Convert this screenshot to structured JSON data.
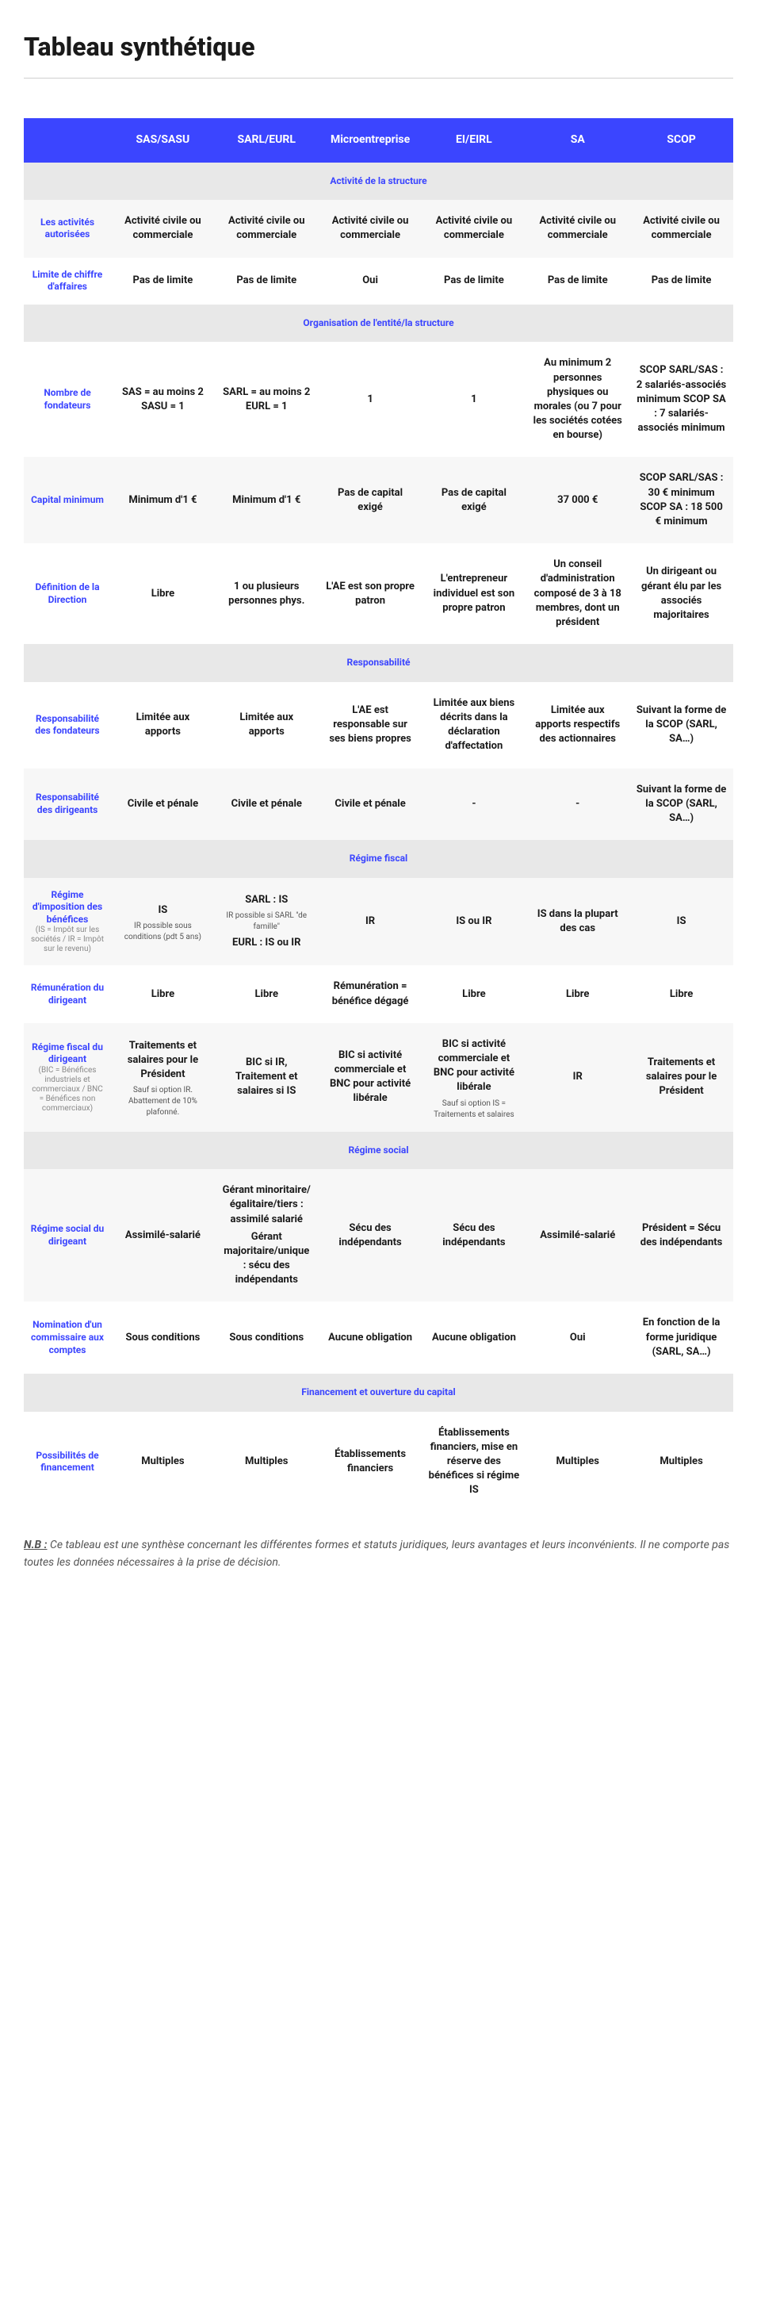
{
  "page": {
    "title": "Tableau synthétique",
    "footnote_label": "N.B :",
    "footnote_text": "Ce tableau est une synthèse concernant les différentes formes et statuts juridiques, leurs avantages et leurs inconvénients. Il ne comporte pas toutes les données nécessaires à la prise de décision."
  },
  "colors": {
    "header_bg": "#3b45ff",
    "header_text": "#ffffff",
    "section_bg": "#e8e8e8",
    "label_color": "#3b45ff",
    "divider": "#d0d0d0"
  },
  "columns": [
    "",
    "SAS/SASU",
    "SARL/EURL",
    "Microentreprise",
    "EI/EIRL",
    "SA",
    "SCOP"
  ],
  "sections": [
    {
      "title": "Activité de la structure",
      "rows": [
        {
          "label": "Les activités autorisées",
          "cells": [
            {
              "main": "Activité civile ou commerciale"
            },
            {
              "main": "Activité civile ou commerciale"
            },
            {
              "main": "Activité civile ou commerciale"
            },
            {
              "main": "Activité civile ou commerciale"
            },
            {
              "main": "Activité civile ou commerciale"
            },
            {
              "main": "Activité civile ou commerciale"
            }
          ]
        },
        {
          "label": "Limite de chiffre d'affaires",
          "cells": [
            {
              "main": "Pas de limite"
            },
            {
              "main": "Pas de limite"
            },
            {
              "main": "Oui"
            },
            {
              "main": "Pas de limite"
            },
            {
              "main": "Pas de limite"
            },
            {
              "main": "Pas de limite"
            }
          ]
        }
      ]
    },
    {
      "title": "Organisation de l'entité/la structure",
      "rows": [
        {
          "label": "Nombre de fondateurs",
          "cells": [
            {
              "main": "SAS = au moins 2 SASU = 1"
            },
            {
              "main": "SARL = au moins 2 EURL = 1"
            },
            {
              "main": "1"
            },
            {
              "main": "1"
            },
            {
              "main": "Au minimum 2 personnes physiques ou morales (ou 7 pour les sociétés cotées en bourse)"
            },
            {
              "main": "SCOP SARL/SAS : 2 salariés-associés minimum SCOP SA : 7 salariés-associés minimum"
            }
          ]
        },
        {
          "label": "Capital minimum",
          "cells": [
            {
              "main": "Minimum d'1 €"
            },
            {
              "main": "Minimum d'1 €"
            },
            {
              "main": "Pas de capital exigé"
            },
            {
              "main": "Pas de capital exigé"
            },
            {
              "main": "37 000 €"
            },
            {
              "main": "SCOP SARL/SAS : 30 € minimum SCOP SA : 18 500 € minimum"
            }
          ]
        },
        {
          "label": "Définition de la Direction",
          "cells": [
            {
              "main": "Libre"
            },
            {
              "main": "1 ou plusieurs personnes phys."
            },
            {
              "main": "L'AE est son propre patron"
            },
            {
              "main": "L'entrepreneur individuel est son propre patron"
            },
            {
              "main": "Un conseil d'administration composé de 3 à 18 membres, dont un président"
            },
            {
              "main": "Un dirigeant ou gérant élu par les associés majoritaires"
            }
          ]
        }
      ]
    },
    {
      "title": "Responsabilité",
      "rows": [
        {
          "label": "Responsabilité des fondateurs",
          "cells": [
            {
              "main": "Limitée aux apports"
            },
            {
              "main": "Limitée aux apports"
            },
            {
              "main": "L'AE est responsable sur ses biens propres"
            },
            {
              "main": "Limitée aux biens décrits dans la déclaration d'affectation"
            },
            {
              "main": "Limitée aux apports respectifs des actionnaires"
            },
            {
              "main": "Suivant la forme de la SCOP (SARL, SA…)"
            }
          ]
        },
        {
          "label": "Responsabilité des dirigeants",
          "cells": [
            {
              "main": "Civile et pénale"
            },
            {
              "main": "Civile et pénale"
            },
            {
              "main": "Civile et pénale"
            },
            {
              "main": "-"
            },
            {
              "main": "-"
            },
            {
              "main": "Suivant la forme de la SCOP (SARL, SA…)"
            }
          ]
        }
      ]
    },
    {
      "title": "Régime fiscal",
      "rows": [
        {
          "label": "Régime d'imposition des bénéfices",
          "label_sub": "(IS = Impôt sur les sociétés / IR = Impôt sur le revenu)",
          "cells": [
            {
              "main": "IS",
              "sub": "IR possible sous conditions (pdt 5 ans)"
            },
            {
              "main": "SARL : IS",
              "sub": "IR possible si SARL \"de famille\"",
              "main2": "EURL : IS ou IR"
            },
            {
              "main": "IR"
            },
            {
              "main": "IS ou IR"
            },
            {
              "main": "IS dans la plupart des cas"
            },
            {
              "main": "IS"
            }
          ]
        },
        {
          "label": "Rémunération du dirigeant",
          "cells": [
            {
              "main": "Libre"
            },
            {
              "main": "Libre"
            },
            {
              "main": "Rémunération = bénéfice dégagé"
            },
            {
              "main": "Libre"
            },
            {
              "main": "Libre"
            },
            {
              "main": "Libre"
            }
          ]
        },
        {
          "label": "Régime fiscal du dirigeant",
          "label_sub": "(BIC = Bénéfices industriels et commerciaux / BNC = Bénéfices non commerciaux)",
          "cells": [
            {
              "main": "Traitements et salaires pour le Président",
              "sub": "Sauf si option IR. Abattement de 10% plafonné."
            },
            {
              "main": "BIC si IR, Traitement et salaires si IS"
            },
            {
              "main": "BIC si activité commerciale et BNC pour activité libérale"
            },
            {
              "main": "BIC si activité commerciale et BNC pour activité libérale",
              "sub": "Sauf si option IS = Traitements et salaires"
            },
            {
              "main": "IR"
            },
            {
              "main": "Traitements et salaires pour le Président"
            }
          ]
        }
      ]
    },
    {
      "title": "Régime social",
      "rows": [
        {
          "label": "Régime social du dirigeant",
          "cells": [
            {
              "main": "Assimilé-salarié"
            },
            {
              "main": "Gérant minoritaire/égalitaire/tiers : assimilé salarié",
              "main2": "Gérant majoritaire/unique : sécu des indépendants"
            },
            {
              "main": "Sécu des indépendants"
            },
            {
              "main": "Sécu des indépendants"
            },
            {
              "main": "Assimilé-salarié"
            },
            {
              "main": "Président = Sécu des indépendants"
            }
          ]
        },
        {
          "label": "Nomination d'un commissaire aux comptes",
          "cells": [
            {
              "main": "Sous conditions"
            },
            {
              "main": "Sous conditions"
            },
            {
              "main": "Aucune obligation"
            },
            {
              "main": "Aucune obligation"
            },
            {
              "main": "Oui"
            },
            {
              "main": "En fonction de la forme juridique (SARL, SA…)"
            }
          ]
        }
      ]
    },
    {
      "title": "Financement et ouverture du capital",
      "rows": [
        {
          "label": "Possibilités de financement",
          "cells": [
            {
              "main": "Multiples"
            },
            {
              "main": "Multiples"
            },
            {
              "main": "Établissements financiers"
            },
            {
              "main": "Établissements financiers, mise en réserve des bénéfices si régime IS"
            },
            {
              "main": "Multiples"
            },
            {
              "main": "Multiples"
            }
          ]
        }
      ]
    }
  ]
}
